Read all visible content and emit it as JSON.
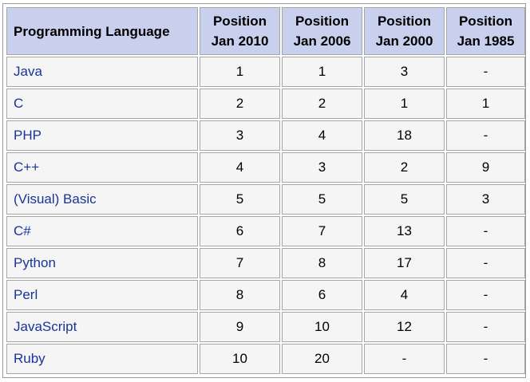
{
  "table": {
    "headers": [
      {
        "line1": "Programming Language",
        "line2": ""
      },
      {
        "line1": "Position",
        "line2": "Jan 2010"
      },
      {
        "line1": "Position",
        "line2": "Jan 2006"
      },
      {
        "line1": "Position",
        "line2": "Jan 2000"
      },
      {
        "line1": "Position",
        "line2": "Jan 1985"
      }
    ],
    "rows": [
      {
        "language": "Java",
        "jan2010": "1",
        "jan2006": "1",
        "jan2000": "3",
        "jan1985": "-"
      },
      {
        "language": "C",
        "jan2010": "2",
        "jan2006": "2",
        "jan2000": "1",
        "jan1985": "1"
      },
      {
        "language": "PHP",
        "jan2010": "3",
        "jan2006": "4",
        "jan2000": "18",
        "jan1985": "-"
      },
      {
        "language": "C++",
        "jan2010": "4",
        "jan2006": "3",
        "jan2000": "2",
        "jan1985": "9"
      },
      {
        "language": "(Visual) Basic",
        "jan2010": "5",
        "jan2006": "5",
        "jan2000": "5",
        "jan1985": "3"
      },
      {
        "language": "C#",
        "jan2010": "6",
        "jan2006": "7",
        "jan2000": "13",
        "jan1985": "-"
      },
      {
        "language": "Python",
        "jan2010": "7",
        "jan2006": "8",
        "jan2000": "17",
        "jan1985": "-"
      },
      {
        "language": "Perl",
        "jan2010": "8",
        "jan2006": "6",
        "jan2000": "4",
        "jan1985": "-"
      },
      {
        "language": "JavaScript",
        "jan2010": "9",
        "jan2006": "10",
        "jan2000": "12",
        "jan1985": "-"
      },
      {
        "language": "Ruby",
        "jan2010": "10",
        "jan2006": "20",
        "jan2000": "-",
        "jan1985": "-"
      }
    ],
    "colors": {
      "header_bg": "#c8d0ee",
      "cell_bg": "#f5f5f5",
      "language_text": "#1a3399",
      "border": "#a6a6a6"
    }
  }
}
